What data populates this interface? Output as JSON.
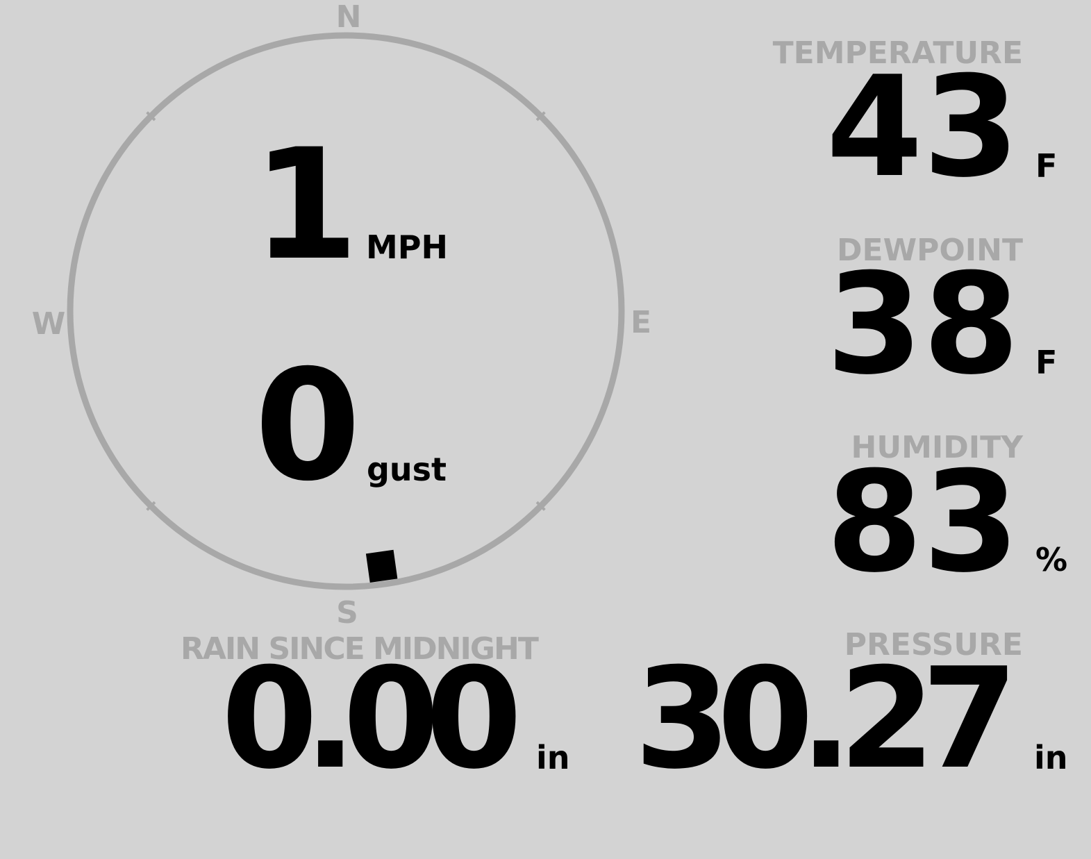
{
  "compass": {
    "north": "N",
    "south": "S",
    "east": "E",
    "west": "W",
    "wind_direction_deg": 172,
    "ring_color": "#a8a8a8",
    "indicator_color": "#000000"
  },
  "wind": {
    "speed": "1",
    "speed_unit": "MPH",
    "gust": "0",
    "gust_unit": "gust"
  },
  "temperature": {
    "label": "TEMPERATURE",
    "value": "43",
    "unit": "F"
  },
  "dewpoint": {
    "label": "DEWPOINT",
    "value": "38",
    "unit": "F"
  },
  "humidity": {
    "label": "HUMIDITY",
    "value": "83",
    "unit": "%"
  },
  "pressure": {
    "label": "PRESSURE",
    "value": "30.27",
    "unit": "in"
  },
  "rain": {
    "label": "RAIN SINCE MIDNIGHT",
    "value": "0.00",
    "unit": "in"
  },
  "colors": {
    "background": "#d3d3d3",
    "label": "#a8a8a8",
    "value": "#000000"
  }
}
